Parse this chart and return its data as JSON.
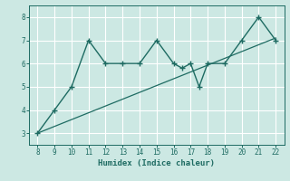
{
  "x_data": [
    8,
    9,
    10,
    11,
    12,
    13,
    14,
    15,
    16,
    16.5,
    17,
    17.5,
    18,
    19,
    20,
    21,
    22
  ],
  "y_data": [
    3,
    4,
    5,
    7,
    6,
    6,
    6,
    7,
    6,
    5.8,
    6,
    5,
    6,
    6,
    7,
    8,
    7
  ],
  "trend_x": [
    8,
    22
  ],
  "trend_y": [
    3.0,
    7.1
  ],
  "line_color": "#1e6b62",
  "bg_color": "#cce8e3",
  "xlabel": "Humidex (Indice chaleur)",
  "xlim": [
    7.5,
    22.5
  ],
  "ylim": [
    2.5,
    8.5
  ],
  "xticks": [
    8,
    9,
    10,
    11,
    12,
    13,
    14,
    15,
    16,
    17,
    18,
    19,
    20,
    21,
    22
  ],
  "yticks": [
    3,
    4,
    5,
    6,
    7,
    8
  ]
}
